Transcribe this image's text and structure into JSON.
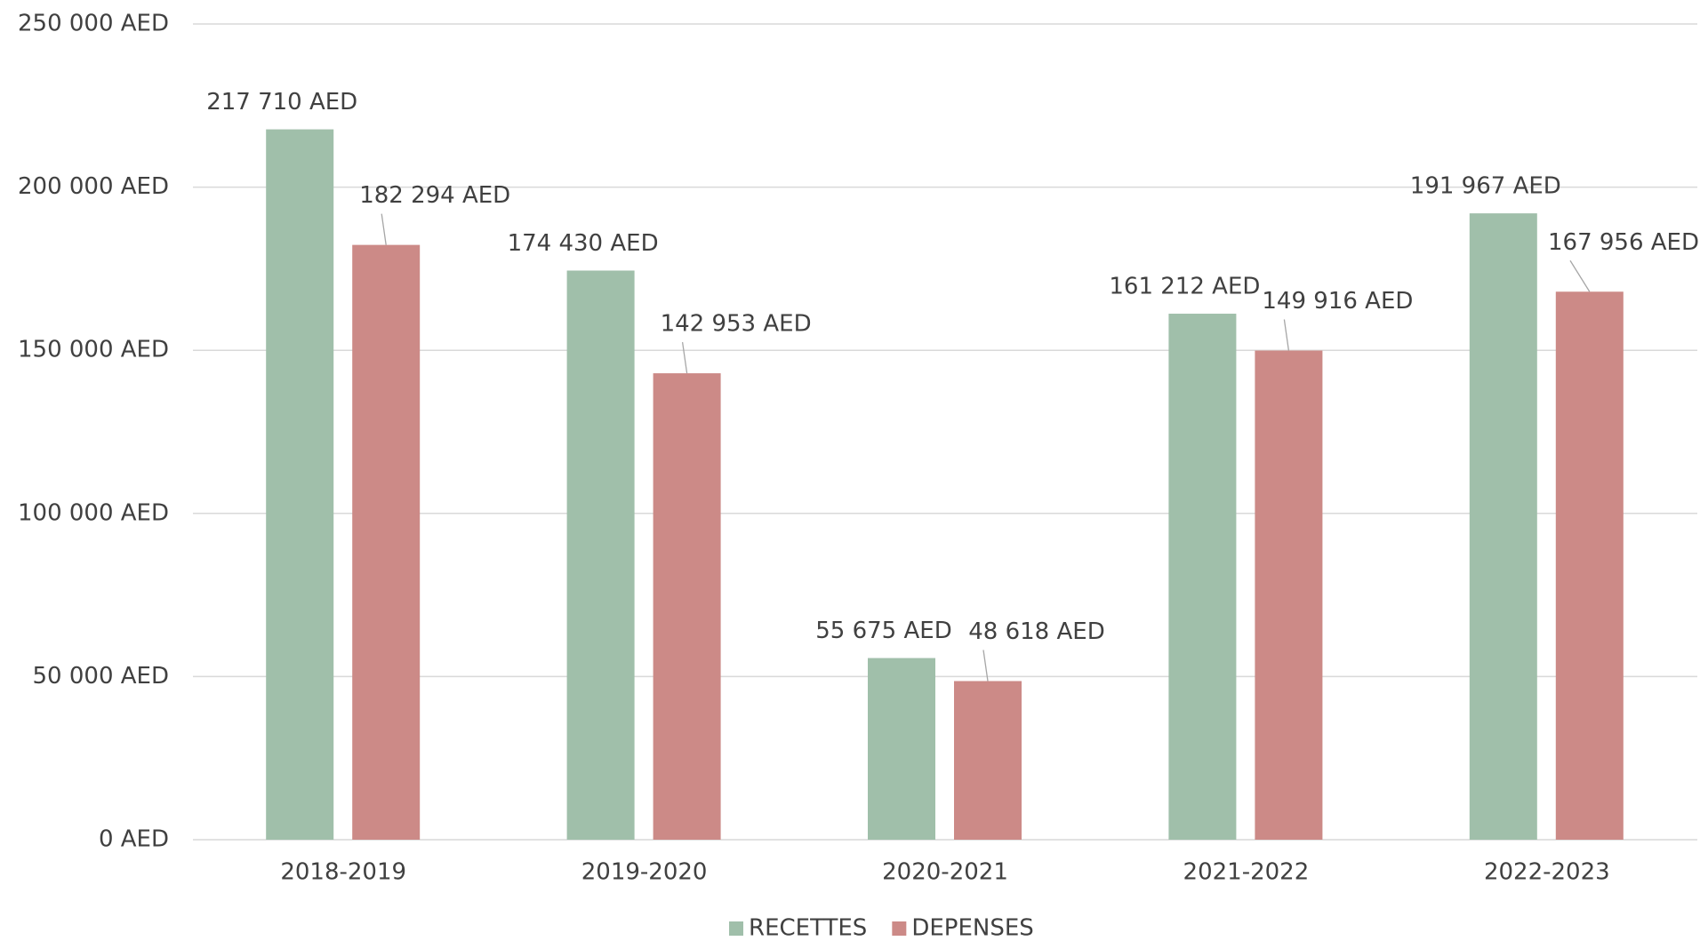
{
  "chart_data": {
    "type": "bar",
    "categories": [
      "2018-2019",
      "2019-2020",
      "2020-2021",
      "2021-2022",
      "2022-2023"
    ],
    "series": [
      {
        "name": "RECETTES",
        "color": "#a0bfaa",
        "values": [
          217710,
          174430,
          55675,
          161212,
          191967
        ],
        "value_labels": [
          "217 710 AED",
          "174 430 AED",
          "55 675 AED",
          "161 212 AED",
          "191 967 AED"
        ]
      },
      {
        "name": "DEPENSES",
        "color": "#cc8a87",
        "values": [
          182294,
          142953,
          48618,
          149916,
          167956
        ],
        "value_labels": [
          "182 294 AED",
          "142 953 AED",
          "48 618 AED",
          "149 916 AED",
          "167 956 AED"
        ]
      }
    ],
    "ylim": [
      0,
      250000
    ],
    "yticks": [
      {
        "value": 0,
        "label": "0 AED"
      },
      {
        "value": 50000,
        "label": "50 000 AED"
      },
      {
        "value": 100000,
        "label": "100 000 AED"
      },
      {
        "value": 150000,
        "label": "150 000 AED"
      },
      {
        "value": 200000,
        "label": "200 000 AED"
      },
      {
        "value": 250000,
        "label": "250 000 AED"
      }
    ],
    "grid": true,
    "legend": "bottom"
  }
}
